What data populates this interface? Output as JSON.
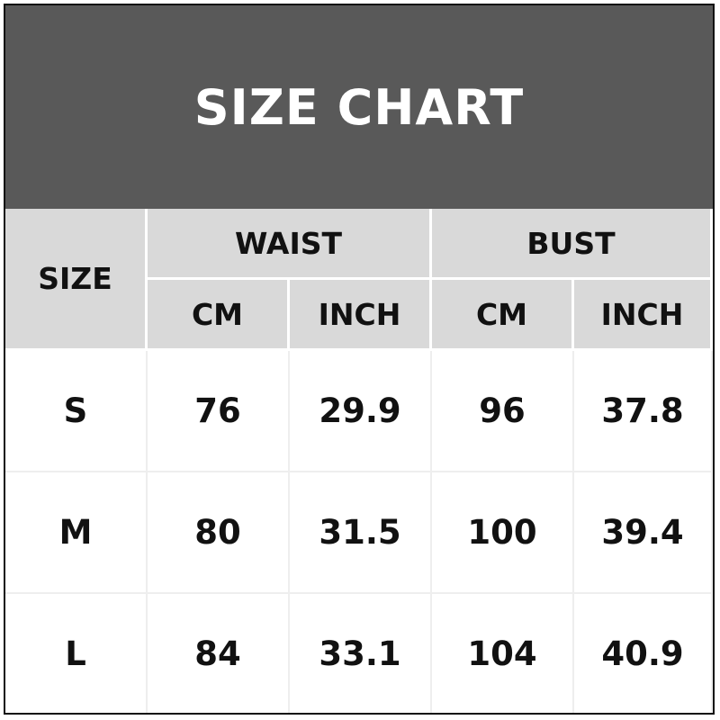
{
  "title": "SIZE CHART",
  "headers": {
    "size": "SIZE",
    "groups": [
      "WAIST",
      "BUST"
    ],
    "units": [
      "CM",
      "INCH",
      "CM",
      "INCH"
    ]
  },
  "rows": [
    [
      "S",
      "76",
      "29.9",
      "96",
      "37.8"
    ],
    [
      "M",
      "80",
      "31.5",
      "100",
      "39.4"
    ],
    [
      "L",
      "84",
      "33.1",
      "104",
      "40.9"
    ]
  ],
  "colors": {
    "title_bg": "#595959",
    "header_bg": "#d9d9d9",
    "text": "#111111"
  }
}
